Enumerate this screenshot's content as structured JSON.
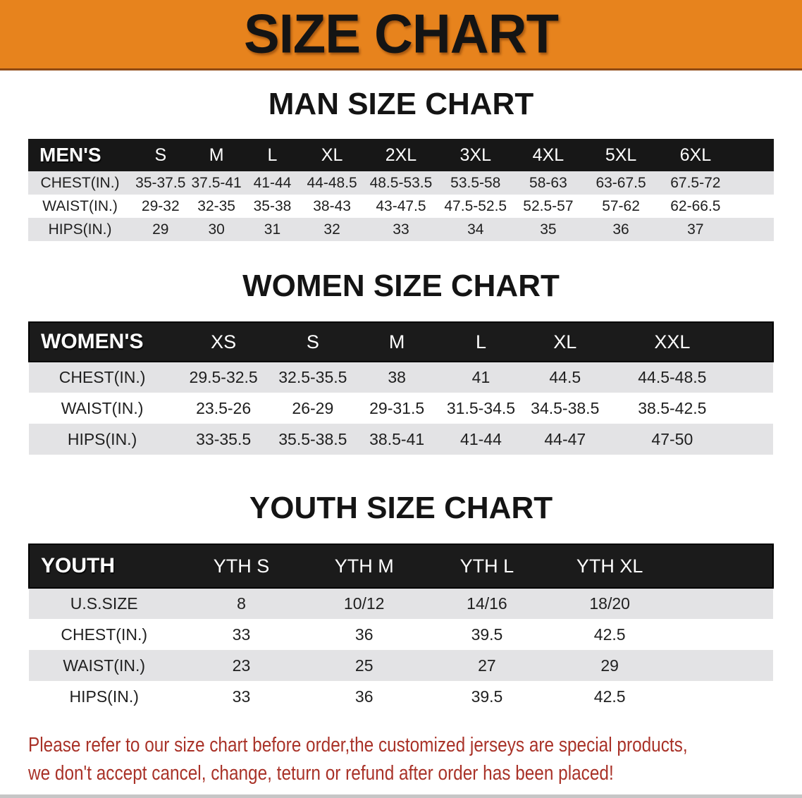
{
  "banner": {
    "title": "SIZE CHART"
  },
  "colors": {
    "banner_orange": "#E7831D",
    "banner_border": "#8F4A14",
    "header_black": "#171717",
    "stripe_gray": "#E3E3E5",
    "note_red": "#A93228",
    "text_black": "#141414",
    "strip_gray": "#C6C6C6"
  },
  "sections": [
    {
      "heading": "MAN SIZE CHART",
      "table": {
        "header": [
          "MEN'S",
          "S",
          "M",
          "L",
          "XL",
          "2XL",
          "3XL",
          "4XL",
          "5XL",
          "6XL"
        ],
        "rows": [
          [
            "CHEST(IN.)",
            "35-37.5",
            "37.5-41",
            "41-44",
            "44-48.5",
            "48.5-53.5",
            "53.5-58",
            "58-63",
            "63-67.5",
            "67.5-72"
          ],
          [
            "WAIST(IN.)",
            "29-32",
            "32-35",
            "35-38",
            "38-43",
            "43-47.5",
            "47.5-52.5",
            "52.5-57",
            "57-62",
            "62-66.5"
          ],
          [
            "HIPS(IN.)",
            "29",
            "30",
            "31",
            "32",
            "33",
            "34",
            "35",
            "36",
            "37"
          ]
        ]
      }
    },
    {
      "heading": "WOMEN SIZE CHART",
      "table": {
        "header": [
          "WOMEN'S",
          "XS",
          "S",
          "M",
          "L",
          "XL",
          "XXL"
        ],
        "rows": [
          [
            "CHEST(IN.)",
            "29.5-32.5",
            "32.5-35.5",
            "38",
            "41",
            "44.5",
            "44.5-48.5"
          ],
          [
            "WAIST(IN.)",
            "23.5-26",
            "26-29",
            "29-31.5",
            "31.5-34.5",
            "34.5-38.5",
            "38.5-42.5"
          ],
          [
            "HIPS(IN.)",
            "33-35.5",
            "35.5-38.5",
            "38.5-41",
            "41-44",
            "44-47",
            "47-50"
          ]
        ]
      }
    },
    {
      "heading": "YOUTH SIZE CHART",
      "table": {
        "header": [
          "YOUTH",
          "YTH S",
          "YTH M",
          "YTH L",
          "YTH XL"
        ],
        "rows": [
          [
            "U.S.SIZE",
            "8",
            "10/12",
            "14/16",
            "18/20"
          ],
          [
            "CHEST(IN.)",
            "33",
            "36",
            "39.5",
            "42.5"
          ],
          [
            "WAIST(IN.)",
            "23",
            "25",
            "27",
            "29"
          ],
          [
            "HIPS(IN.)",
            "33",
            "36",
            "39.5",
            "42.5"
          ]
        ]
      }
    }
  ],
  "footer_note": {
    "lines": [
      "Please refer to our size chart before order,the customized jerseys are special products,",
      "we don't accept cancel, change, teturn or refund after order has been placed!"
    ]
  }
}
